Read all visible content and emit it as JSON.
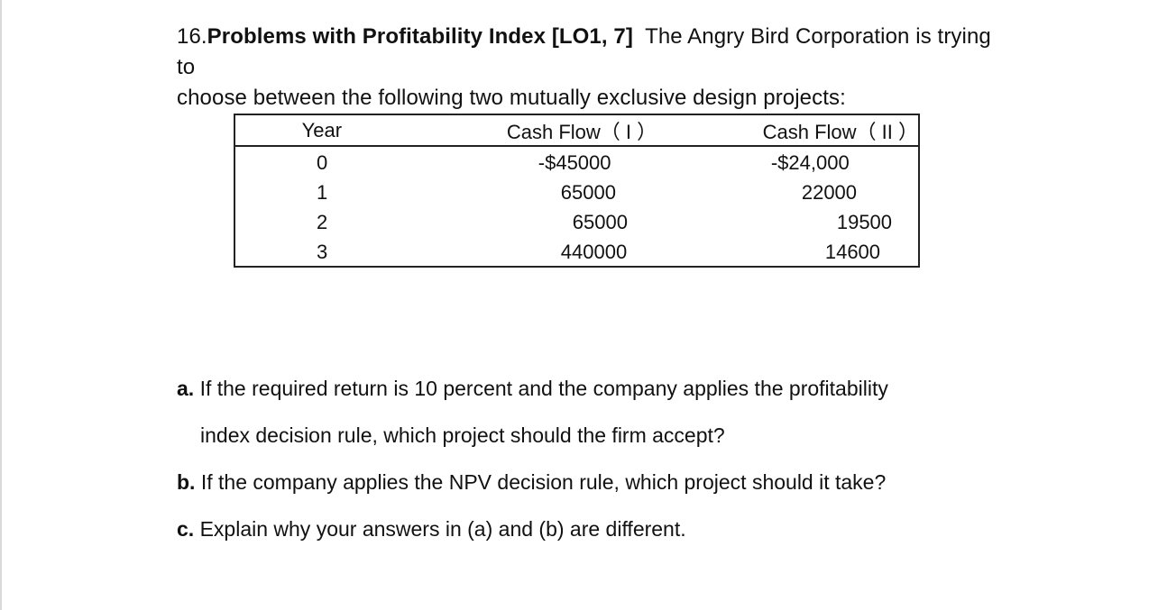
{
  "problem": {
    "number": "16.",
    "title": "Problems with Profitability Index",
    "lo": "[LO1, 7]",
    "line1": "The Angry Bird Corporation is trying to",
    "line2": "choose between the following two mutually exclusive design projects:"
  },
  "table": {
    "headers": [
      "Year",
      "Cash Flow（ I ）",
      "Cash Flow（ II ）"
    ],
    "rows": [
      [
        "0",
        "-$45000",
        "-$24,000"
      ],
      [
        "1",
        "65000",
        "22000"
      ],
      [
        "2",
        "65000",
        "19500"
      ],
      [
        "3",
        "440000",
        "14600"
      ]
    ]
  },
  "questions": [
    {
      "letter": "a.",
      "text": "If the required return is 10 percent and the company applies the profitability"
    },
    {
      "letter": "",
      "text": "index decision rule, which project should the firm accept?"
    },
    {
      "letter": "b.",
      "text": "If the company applies the NPV decision rule, which project should it take?"
    },
    {
      "letter": "c.",
      "text": "Explain why your answers in (a) and (b) are different."
    }
  ]
}
